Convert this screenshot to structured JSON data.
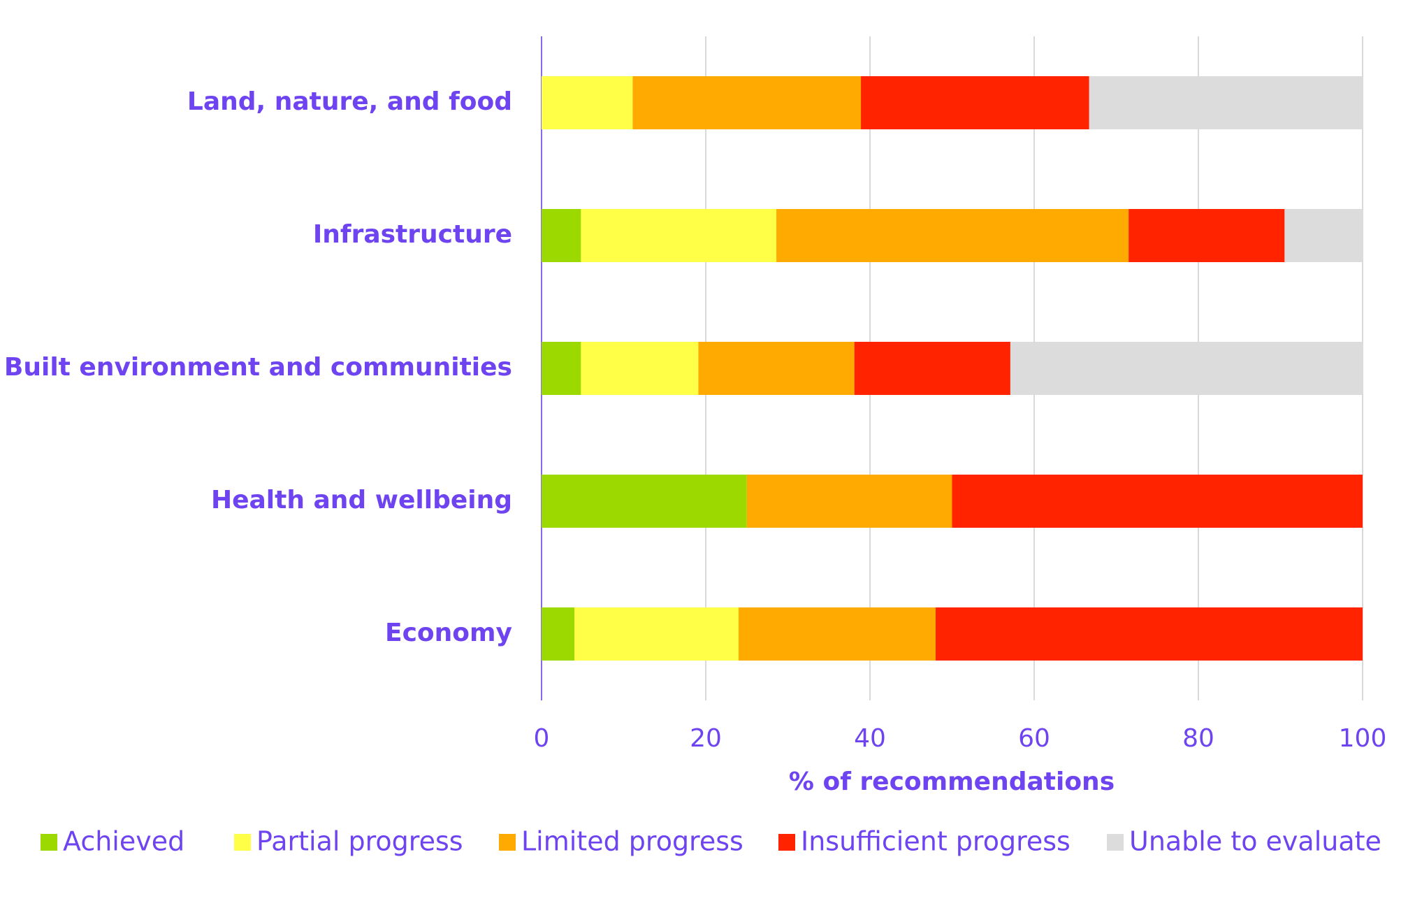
{
  "chart_data": {
    "type": "stacked_bar_horizontal",
    "x_label": "% of recommendations",
    "categories": [
      "Land, nature, and food",
      "Infrastructure",
      "Built environment and communities",
      "Health and wellbeing",
      "Economy"
    ],
    "series": [
      {
        "name": "Achieved",
        "color": "#9bd900",
        "values": [
          0,
          4.8,
          4.8,
          25,
          4
        ]
      },
      {
        "name": "Partial progress",
        "color": "#ffff47",
        "values": [
          11.1,
          23.8,
          14.3,
          0,
          20
        ]
      },
      {
        "name": "Limited progress",
        "color": "#ffaa00",
        "values": [
          27.8,
          42.9,
          19,
          25,
          24
        ]
      },
      {
        "name": "Insufficient progress",
        "color": "#ff2300",
        "values": [
          27.8,
          19,
          19,
          50,
          52
        ]
      },
      {
        "name": "Unable to evaluate",
        "color": "#dcdcdc",
        "values": [
          33.3,
          9.5,
          42.9,
          0,
          0
        ]
      }
    ],
    "xlim": [
      0,
      100
    ],
    "xticks": [
      0,
      20,
      40,
      60,
      80,
      100
    ],
    "grid": true,
    "legend": "bottom"
  }
}
